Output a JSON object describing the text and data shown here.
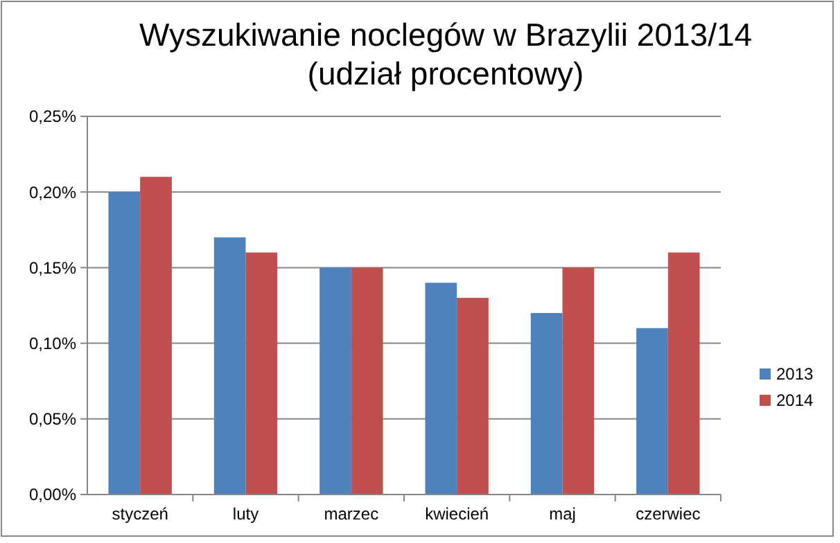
{
  "chart_data": {
    "type": "bar",
    "title": "Wyszukiwanie noclegów w Brazylii 2013/14\n(udział procentowy)",
    "categories": [
      "styczeń",
      "luty",
      "marzec",
      "kwiecień",
      "maj",
      "czerwiec"
    ],
    "series": [
      {
        "name": "2013",
        "color": "#4f81bd",
        "values": [
          0.2,
          0.17,
          0.15,
          0.14,
          0.12,
          0.11
        ]
      },
      {
        "name": "2014",
        "color": "#c0504d",
        "values": [
          0.21,
          0.16,
          0.15,
          0.13,
          0.15,
          0.16
        ]
      }
    ],
    "ylim": [
      0,
      0.25
    ],
    "yticks": [
      {
        "value": 0,
        "label": "0,00%"
      },
      {
        "value": 0.05,
        "label": "0,05%"
      },
      {
        "value": 0.1,
        "label": "0,10%"
      },
      {
        "value": 0.15,
        "label": "0,15%"
      },
      {
        "value": 0.2,
        "label": "0,20%"
      },
      {
        "value": 0.25,
        "label": "0,25%"
      }
    ],
    "grid": "y",
    "legend": "right"
  }
}
